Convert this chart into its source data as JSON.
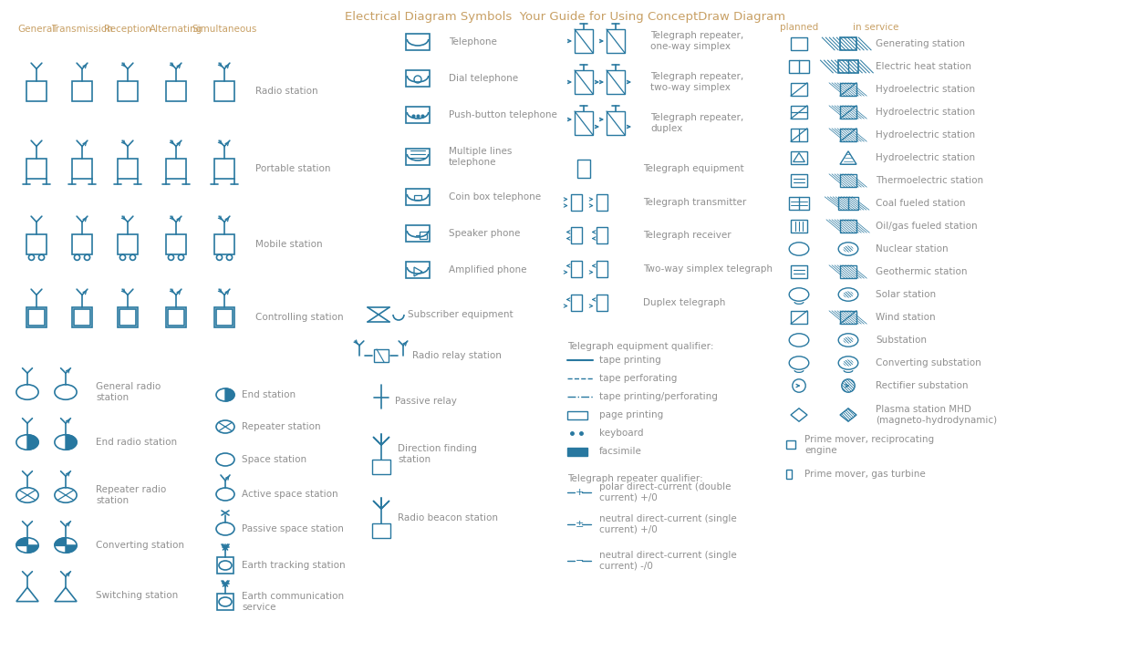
{
  "bg": "#ffffff",
  "sc": "#2878a0",
  "lc": "#909090",
  "hc": "#c8a065",
  "title": "Electrical Diagram Symbols  Your Guide for Using ConceptDraw Diagram",
  "col_headers": [
    "General",
    "Transmission",
    "Reception",
    "Alternating",
    "Simultaneous"
  ],
  "row_labels": [
    "Radio station",
    "Portable station",
    "Mobile station",
    "Controlling station"
  ],
  "section2_labels": [
    "General radio\nstation",
    "End radio station",
    "Repeater radio\nstation",
    "Converting station",
    "Switching station"
  ],
  "section3_labels": [
    "End station",
    "Repeater station",
    "Space station",
    "Active space station",
    "Passive space station",
    "Earth tracking station",
    "Earth communication\nservice"
  ],
  "telephone_labels": [
    "Telephone",
    "Dial telephone",
    "Push-button telephone",
    "Multiple lines\ntelephone",
    "Coin box telephone",
    "Speaker phone",
    "Amplified phone"
  ],
  "subscriber_label": "Subscriber equipment",
  "radio_relay_label": "Radio relay station",
  "passive_relay_label": "Passive relay",
  "direction_finding_label": "Direction finding\nstation",
  "radio_beacon_label": "Radio beacon station",
  "telegraph_repeater_labels": [
    "Telegraph repeater,\none-way simplex",
    "Telegraph repeater,\ntwo-way simplex",
    "Telegraph repeater,\nduplex"
  ],
  "telegraph_labels": [
    "Telegraph equipment",
    "Telegraph transmitter",
    "Telegraph receiver",
    "Two-way simplex telegraph",
    "Duplex telegraph"
  ],
  "qualifier_header": "Telegraph equipment qualifier:",
  "qualifier_labels": [
    "tape printing",
    "tape perforating",
    "tape printing/perforating",
    "page printing",
    "keyboard",
    "facsimile"
  ],
  "repeater_qualifier_header": "Telegraph repeater qualifier:",
  "repeater_qualifier_labels": [
    "polar direct-current (double\ncurrent) +/0",
    "neutral direct-current (single\ncurrent) +/0",
    "neutral direct-current (single\ncurrent) -/0"
  ],
  "planned_header": "planned",
  "service_header": "in service",
  "station_labels": [
    "Generating station",
    "Electric heat station",
    "Hydroelectric station",
    "Hydroelectric station",
    "Hydroelectric station",
    "Hydroelectric station",
    "Thermoelectric station",
    "Coal fueled station",
    "Oil/gas fueled station",
    "Nuclear station",
    "Geothermic station",
    "Solar station",
    "Wind station",
    "Substation",
    "Converting substation",
    "Rectifier substation",
    "Plasma station MHD\n(magneto-hydrodynamic)"
  ],
  "prime_labels": [
    "Prime mover, reciprocating\nengine",
    "Prime mover, gas turbine"
  ]
}
